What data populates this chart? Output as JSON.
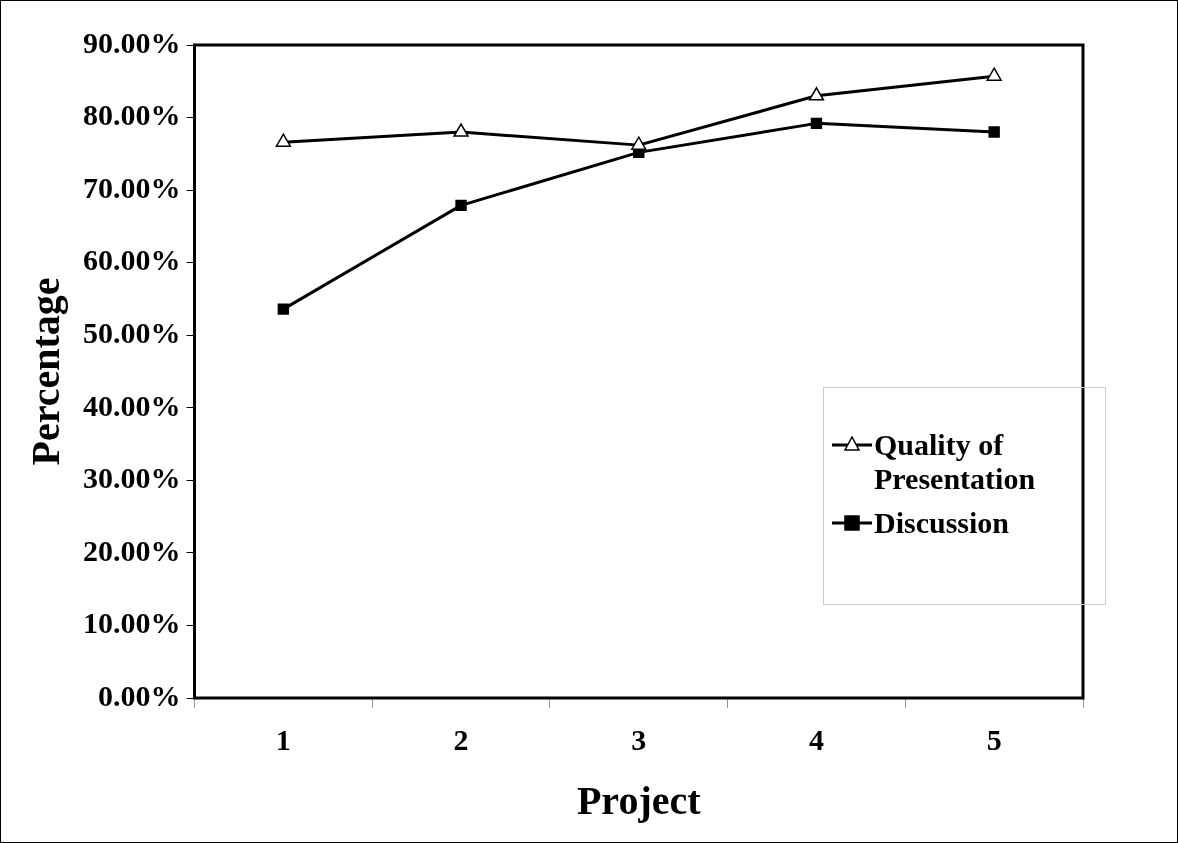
{
  "chart_data": {
    "type": "line",
    "xlabel": "Project",
    "ylabel": "Percentage",
    "categories": [
      "1",
      "2",
      "3",
      "4",
      "5"
    ],
    "series": [
      {
        "name": "Quality of Presentation",
        "color": "#000000",
        "marker": "triangle",
        "values": [
          76.6,
          78.0,
          76.2,
          83.0,
          85.7
        ]
      },
      {
        "name": "Discussion",
        "color": "#000000",
        "marker": "square",
        "values": [
          53.6,
          67.9,
          75.2,
          79.2,
          78.0
        ]
      }
    ],
    "ylim": [
      0,
      90
    ],
    "yticks": [
      {
        "value": 0,
        "label": "0.00%"
      },
      {
        "value": 10,
        "label": "10.00%"
      },
      {
        "value": 20,
        "label": "20.00%"
      },
      {
        "value": 30,
        "label": "30.00%"
      },
      {
        "value": 40,
        "label": "40.00%"
      },
      {
        "value": 50,
        "label": "50.00%"
      },
      {
        "value": 60,
        "label": "60.00%"
      },
      {
        "value": 70,
        "label": "70.00%"
      },
      {
        "value": 80,
        "label": "80.00%"
      },
      {
        "value": 90,
        "label": "90.00%"
      }
    ],
    "grid": false,
    "legend": "right",
    "line_style": "solid"
  }
}
